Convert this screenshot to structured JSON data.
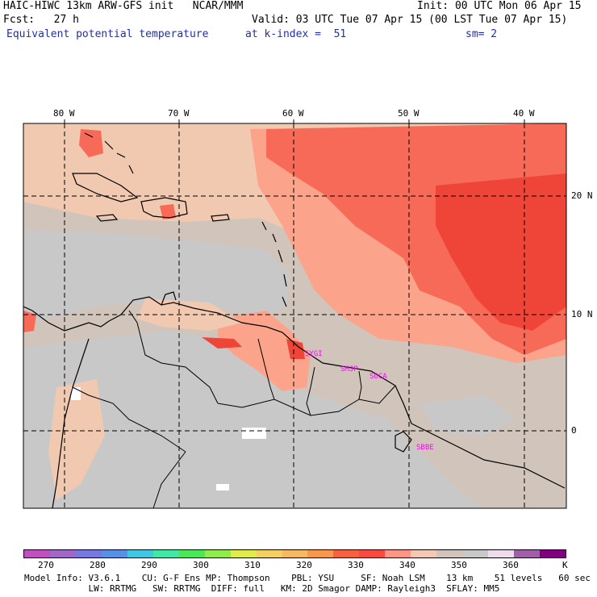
{
  "header": {
    "line1_left": "HAIC-HIWC 13km ARW-GFS init   NCAR/MMM",
    "line1_right": "Init: 00 UTC Mon 06 Apr 15",
    "line2_left": "Fcst:   27 h",
    "line2_right": "Valid: 03 UTC Tue 07 Apr 15 (00 LST Tue 07 Apr 15)",
    "field_name": "Equivalent potential temperature",
    "level": "at k-index =  51",
    "smoothing": "sm= 2"
  },
  "map": {
    "lon_labels": [
      "80 W",
      "70 W",
      "60 W",
      "50 W",
      "40 W"
    ],
    "lat_labels": [
      "20 N",
      "10 N",
      "0"
    ],
    "stations": [
      "SYGI",
      "SMJP",
      "SOCA",
      "SBBE"
    ],
    "colors": {
      "gray": "#c8c8c8",
      "tan_gray": "#d0c4bb",
      "light_tan": "#f1c9b1",
      "salmon": "#fca48b",
      "red_orange": "#f86a58",
      "red": "#ef4438",
      "white": "#ffffff",
      "coast": "#000000",
      "grid": "#000000"
    }
  },
  "colorbar": {
    "colors": [
      "#c050c0",
      "#a066c8",
      "#7878e0",
      "#5890e8",
      "#40c8e0",
      "#40e8a8",
      "#48e858",
      "#90ec48",
      "#e0ec48",
      "#f4d060",
      "#f8b860",
      "#f89848",
      "#f86040",
      "#f84a40",
      "#fc9488",
      "#f4c8b4",
      "#d0c4bc",
      "#c8c8c8",
      "#ecdcec",
      "#a060a8",
      "#800080"
    ],
    "labels": [
      "270",
      "280",
      "290",
      "300",
      "310",
      "320",
      "330",
      "340",
      "350",
      "360",
      "K"
    ]
  },
  "footer": {
    "line1": "Model Info: V3.6.1    CU: G-F Ens MP: Thompson    PBL: YSU     SF: Noah LSM    13 km    51 levels   60 sec",
    "line2": "            LW: RRTMG   SW: RRTMG  DIFF: full   KM: 2D Smagor DAMP: Rayleigh3  SFLAY: MM5"
  }
}
